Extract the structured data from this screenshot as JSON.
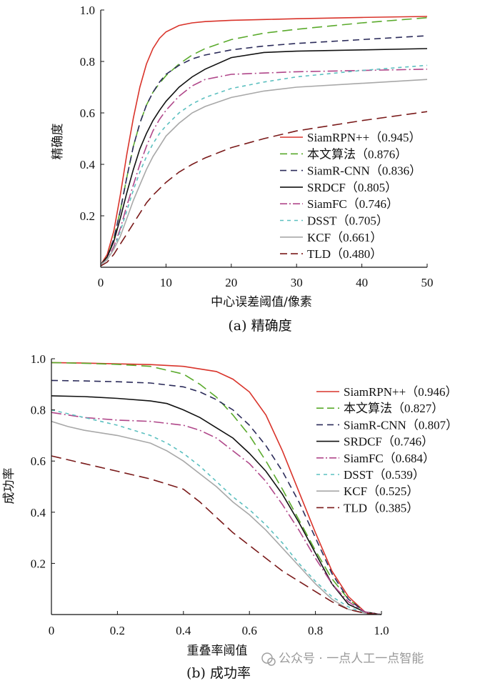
{
  "chart_data": [
    {
      "type": "line",
      "caption": "(a) 精确度",
      "xlabel": "中心误差阈值/像素",
      "ylabel": "精确度",
      "xlim": [
        0,
        50
      ],
      "ylim": [
        0,
        1.0
      ],
      "xticks": [
        0,
        10,
        20,
        30,
        40,
        50
      ],
      "yticks": [
        0.2,
        0.4,
        0.6,
        0.8,
        1.0
      ],
      "ytick_labels": [
        "0.2",
        "0.4",
        "0.6",
        "0.8",
        "1.0"
      ],
      "legend_position": "lower-right",
      "series": [
        {
          "name": "SiamRPN++",
          "score": "（0.945）",
          "color": "#d9342b",
          "dash": "solid",
          "x": [
            0,
            1,
            2,
            3,
            4,
            5,
            6,
            7,
            8,
            9,
            10,
            12,
            14,
            16,
            20,
            25,
            30,
            40,
            50
          ],
          "y": [
            0.01,
            0.05,
            0.14,
            0.28,
            0.44,
            0.58,
            0.7,
            0.79,
            0.85,
            0.89,
            0.915,
            0.94,
            0.95,
            0.955,
            0.96,
            0.963,
            0.966,
            0.971,
            0.975
          ]
        },
        {
          "name": "本文算法",
          "score": "（0.876）",
          "color": "#5aaa2c",
          "dash": "long",
          "x": [
            0,
            1,
            2,
            3,
            4,
            5,
            6,
            7,
            8,
            9,
            10,
            12,
            14,
            16,
            20,
            25,
            30,
            40,
            50
          ],
          "y": [
            0.01,
            0.04,
            0.11,
            0.22,
            0.35,
            0.47,
            0.56,
            0.63,
            0.68,
            0.715,
            0.745,
            0.79,
            0.825,
            0.85,
            0.885,
            0.91,
            0.925,
            0.95,
            0.97
          ]
        },
        {
          "name": "SiamR-CNN",
          "score": "（0.836）",
          "color": "#2b2b5a",
          "dash": "medium",
          "x": [
            0,
            1,
            2,
            3,
            4,
            5,
            6,
            7,
            8,
            9,
            10,
            12,
            14,
            16,
            20,
            25,
            30,
            40,
            50
          ],
          "y": [
            0.01,
            0.04,
            0.11,
            0.22,
            0.35,
            0.47,
            0.56,
            0.63,
            0.68,
            0.72,
            0.75,
            0.785,
            0.81,
            0.825,
            0.845,
            0.86,
            0.87,
            0.885,
            0.9
          ]
        },
        {
          "name": "SRDCF",
          "score": "（0.805）",
          "color": "#111111",
          "dash": "solid",
          "x": [
            0,
            1,
            2,
            3,
            4,
            5,
            6,
            7,
            8,
            9,
            10,
            12,
            14,
            16,
            20,
            25,
            30,
            40,
            50
          ],
          "y": [
            0.01,
            0.04,
            0.1,
            0.19,
            0.29,
            0.38,
            0.46,
            0.52,
            0.57,
            0.61,
            0.645,
            0.7,
            0.74,
            0.77,
            0.815,
            0.835,
            0.84,
            0.845,
            0.85
          ]
        },
        {
          "name": "SiamFC",
          "score": "（0.746）",
          "color": "#b0478a",
          "dash": "longdot",
          "x": [
            0,
            1,
            2,
            3,
            4,
            5,
            6,
            7,
            8,
            9,
            10,
            12,
            14,
            16,
            20,
            25,
            30,
            40,
            50
          ],
          "y": [
            0.01,
            0.03,
            0.08,
            0.15,
            0.24,
            0.32,
            0.4,
            0.47,
            0.53,
            0.575,
            0.61,
            0.665,
            0.705,
            0.73,
            0.75,
            0.755,
            0.76,
            0.765,
            0.77
          ]
        },
        {
          "name": "DSST",
          "score": "（0.705）",
          "color": "#5cc0c0",
          "dash": "short",
          "x": [
            0,
            1,
            2,
            3,
            4,
            5,
            6,
            7,
            8,
            9,
            10,
            12,
            14,
            16,
            20,
            25,
            30,
            40,
            50
          ],
          "y": [
            0.01,
            0.03,
            0.07,
            0.14,
            0.22,
            0.3,
            0.37,
            0.43,
            0.48,
            0.52,
            0.55,
            0.6,
            0.635,
            0.66,
            0.695,
            0.72,
            0.74,
            0.765,
            0.785
          ]
        },
        {
          "name": "KCF",
          "score": "（0.661）",
          "color": "#a8a8a8",
          "dash": "solid",
          "x": [
            0,
            1,
            2,
            3,
            4,
            5,
            6,
            7,
            8,
            9,
            10,
            12,
            14,
            16,
            20,
            25,
            30,
            40,
            50
          ],
          "y": [
            0.01,
            0.03,
            0.07,
            0.12,
            0.19,
            0.26,
            0.32,
            0.38,
            0.43,
            0.47,
            0.51,
            0.56,
            0.6,
            0.625,
            0.66,
            0.685,
            0.7,
            0.715,
            0.73
          ]
        },
        {
          "name": "TLD",
          "score": "（0.480）",
          "color": "#7a1a1a",
          "dash": "long",
          "x": [
            0,
            1,
            2,
            3,
            4,
            5,
            6,
            7,
            8,
            9,
            10,
            12,
            14,
            16,
            20,
            25,
            30,
            40,
            50
          ],
          "y": [
            0.005,
            0.02,
            0.05,
            0.09,
            0.13,
            0.17,
            0.21,
            0.25,
            0.28,
            0.305,
            0.33,
            0.37,
            0.4,
            0.425,
            0.465,
            0.5,
            0.53,
            0.57,
            0.605
          ]
        }
      ]
    },
    {
      "type": "line",
      "caption": "(b) 成功率",
      "xlabel": "重叠率阈值",
      "ylabel": "成功率",
      "xlim": [
        0,
        1.0
      ],
      "ylim": [
        0,
        1.0
      ],
      "xticks": [
        0,
        0.2,
        0.4,
        0.6,
        0.8,
        1.0
      ],
      "xtick_labels": [
        "0",
        "0.2",
        "0.4",
        "0.6",
        "0.8",
        "1.0"
      ],
      "yticks": [
        0.2,
        0.4,
        0.6,
        0.8,
        1.0
      ],
      "ytick_labels": [
        "0.2",
        "0.4",
        "0.6",
        "0.8",
        "1.0"
      ],
      "legend_position": "upper-right",
      "series": [
        {
          "name": "SiamRPN++",
          "score": "（0.946）",
          "color": "#d9342b",
          "dash": "solid",
          "x": [
            0,
            0.1,
            0.2,
            0.3,
            0.4,
            0.5,
            0.55,
            0.6,
            0.65,
            0.7,
            0.75,
            0.8,
            0.85,
            0.9,
            0.95,
            1.0
          ],
          "y": [
            0.985,
            0.983,
            0.98,
            0.977,
            0.97,
            0.95,
            0.92,
            0.87,
            0.78,
            0.64,
            0.48,
            0.32,
            0.17,
            0.07,
            0.01,
            0.0
          ]
        },
        {
          "name": "本文算法",
          "score": "（0.827）",
          "color": "#5aaa2c",
          "dash": "long",
          "x": [
            0,
            0.1,
            0.2,
            0.3,
            0.4,
            0.45,
            0.5,
            0.55,
            0.6,
            0.65,
            0.7,
            0.75,
            0.8,
            0.85,
            0.9,
            0.95,
            1.0
          ],
          "y": [
            0.985,
            0.982,
            0.978,
            0.97,
            0.94,
            0.9,
            0.85,
            0.78,
            0.7,
            0.6,
            0.49,
            0.37,
            0.25,
            0.14,
            0.06,
            0.01,
            0.0
          ]
        },
        {
          "name": "SiamR-CNN",
          "score": "（0.807）",
          "color": "#2b2b5a",
          "dash": "medium",
          "x": [
            0,
            0.1,
            0.2,
            0.3,
            0.4,
            0.45,
            0.5,
            0.55,
            0.6,
            0.65,
            0.7,
            0.75,
            0.8,
            0.85,
            0.9,
            0.95,
            1.0
          ],
          "y": [
            0.915,
            0.913,
            0.91,
            0.905,
            0.89,
            0.87,
            0.84,
            0.8,
            0.74,
            0.66,
            0.56,
            0.44,
            0.3,
            0.16,
            0.06,
            0.01,
            0.0
          ]
        },
        {
          "name": "SRDCF",
          "score": "（0.746）",
          "color": "#111111",
          "dash": "solid",
          "x": [
            0,
            0.1,
            0.2,
            0.3,
            0.35,
            0.4,
            0.45,
            0.5,
            0.55,
            0.6,
            0.65,
            0.7,
            0.75,
            0.8,
            0.85,
            0.9,
            0.95,
            1.0
          ],
          "y": [
            0.855,
            0.852,
            0.845,
            0.835,
            0.825,
            0.8,
            0.77,
            0.73,
            0.69,
            0.63,
            0.56,
            0.47,
            0.36,
            0.24,
            0.12,
            0.04,
            0.01,
            0.0
          ]
        },
        {
          "name": "SiamFC",
          "score": "（0.684）",
          "color": "#b0478a",
          "dash": "longdot",
          "x": [
            0,
            0.1,
            0.2,
            0.3,
            0.4,
            0.45,
            0.5,
            0.55,
            0.6,
            0.65,
            0.7,
            0.75,
            0.8,
            0.85,
            0.9,
            0.95,
            1.0
          ],
          "y": [
            0.79,
            0.77,
            0.76,
            0.755,
            0.74,
            0.72,
            0.69,
            0.64,
            0.59,
            0.52,
            0.43,
            0.33,
            0.22,
            0.12,
            0.05,
            0.01,
            0.0
          ]
        },
        {
          "name": "DSST",
          "score": "（0.539）",
          "color": "#5cc0c0",
          "dash": "short",
          "x": [
            0,
            0.1,
            0.2,
            0.3,
            0.35,
            0.4,
            0.45,
            0.5,
            0.55,
            0.6,
            0.65,
            0.7,
            0.75,
            0.8,
            0.85,
            0.9,
            0.95,
            1.0
          ],
          "y": [
            0.8,
            0.77,
            0.74,
            0.7,
            0.67,
            0.63,
            0.58,
            0.52,
            0.46,
            0.41,
            0.35,
            0.28,
            0.2,
            0.13,
            0.07,
            0.03,
            0.005,
            0.0
          ]
        },
        {
          "name": "KCF",
          "score": "（0.525）",
          "color": "#a8a8a8",
          "dash": "solid",
          "x": [
            0,
            0.05,
            0.1,
            0.2,
            0.3,
            0.35,
            0.4,
            0.45,
            0.5,
            0.55,
            0.6,
            0.65,
            0.7,
            0.75,
            0.8,
            0.85,
            0.9,
            0.95,
            1.0
          ],
          "y": [
            0.755,
            0.735,
            0.72,
            0.7,
            0.67,
            0.64,
            0.6,
            0.55,
            0.5,
            0.44,
            0.39,
            0.33,
            0.26,
            0.19,
            0.12,
            0.06,
            0.02,
            0.005,
            0.0
          ]
        },
        {
          "name": "TLD",
          "score": "（0.385）",
          "color": "#7a1a1a",
          "dash": "long",
          "x": [
            0,
            0.1,
            0.2,
            0.3,
            0.35,
            0.4,
            0.45,
            0.5,
            0.55,
            0.6,
            0.65,
            0.7,
            0.75,
            0.8,
            0.85,
            0.9,
            0.95,
            1.0
          ],
          "y": [
            0.62,
            0.59,
            0.56,
            0.53,
            0.51,
            0.49,
            0.44,
            0.38,
            0.32,
            0.27,
            0.22,
            0.17,
            0.13,
            0.09,
            0.05,
            0.02,
            0.005,
            0.0
          ]
        }
      ]
    }
  ],
  "watermark": "公众号 · 一点人工一点智能"
}
